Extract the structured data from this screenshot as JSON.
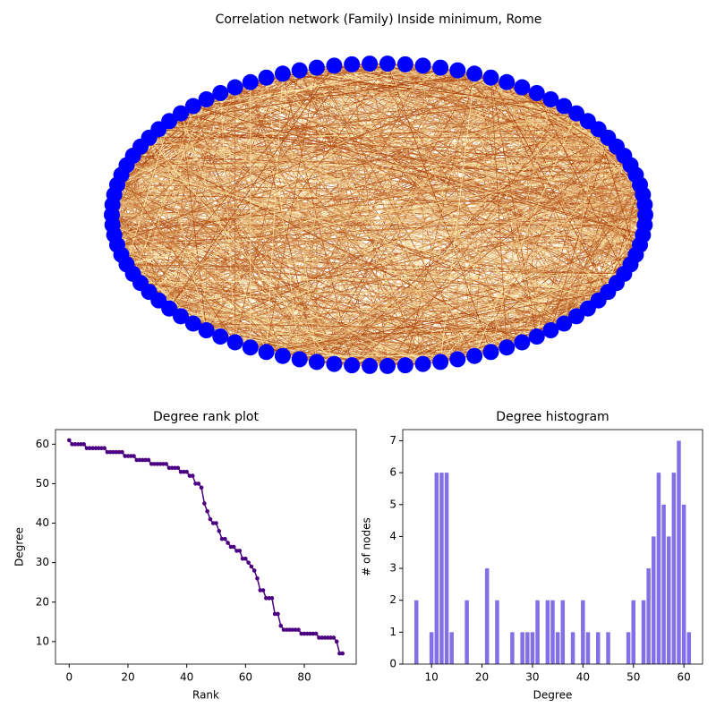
{
  "network": {
    "title": "Correlation network (Family) Inside minimum, Rome"
  },
  "chart_data": [
    {
      "type": "line",
      "title": "Degree rank plot",
      "x_label": "Rank",
      "y_label": "Degree",
      "color": "#4b0082",
      "x": [
        0,
        1,
        2,
        3,
        4,
        5,
        6,
        7,
        8,
        9,
        10,
        11,
        12,
        13,
        14,
        15,
        16,
        17,
        18,
        19,
        20,
        21,
        22,
        23,
        24,
        25,
        26,
        27,
        28,
        29,
        30,
        31,
        32,
        33,
        34,
        35,
        36,
        37,
        38,
        39,
        40,
        41,
        42,
        43,
        44,
        45,
        46,
        47,
        48,
        49,
        50,
        51,
        52,
        53,
        54,
        55,
        56,
        57,
        58,
        59,
        60,
        61,
        62,
        63,
        64,
        65,
        66,
        67,
        68,
        69,
        70,
        71,
        72,
        73,
        74,
        75,
        76,
        77,
        78,
        79,
        80,
        81,
        82,
        83,
        84,
        85,
        86,
        87,
        88,
        89,
        90,
        91,
        92,
        93
      ],
      "values": [
        61,
        60,
        60,
        60,
        60,
        60,
        59,
        59,
        59,
        59,
        59,
        59,
        59,
        58,
        58,
        58,
        58,
        58,
        58,
        57,
        57,
        57,
        57,
        56,
        56,
        56,
        56,
        56,
        55,
        55,
        55,
        55,
        55,
        55,
        54,
        54,
        54,
        54,
        53,
        53,
        53,
        52,
        52,
        50,
        50,
        49,
        45,
        43,
        41,
        40,
        40,
        38,
        36,
        36,
        35,
        34,
        34,
        33,
        33,
        31,
        31,
        30,
        29,
        28,
        26,
        23,
        23,
        21,
        21,
        21,
        17,
        17,
        14,
        13,
        13,
        13,
        13,
        13,
        13,
        12,
        12,
        12,
        12,
        12,
        12,
        11,
        11,
        11,
        11,
        11,
        11,
        10,
        7,
        7
      ],
      "xlim": [
        -4.65,
        97.65
      ],
      "xticks": [
        0,
        20,
        40,
        60,
        80
      ],
      "ylim": [
        4.3,
        63.7
      ],
      "yticks": [
        10,
        20,
        30,
        40,
        50,
        60
      ]
    },
    {
      "type": "bar",
      "title": "Degree histogram",
      "x_label": "Degree",
      "y_label": "# of nodes",
      "color": "#8470e6",
      "x": [
        7,
        10,
        11,
        12,
        13,
        14,
        17,
        21,
        23,
        26,
        28,
        29,
        30,
        31,
        33,
        34,
        35,
        36,
        38,
        40,
        41,
        43,
        45,
        49,
        50,
        52,
        53,
        54,
        55,
        56,
        57,
        58,
        59,
        60,
        61
      ],
      "values": [
        2,
        1,
        6,
        6,
        6,
        1,
        2,
        3,
        2,
        1,
        1,
        1,
        1,
        2,
        2,
        2,
        1,
        2,
        1,
        2,
        1,
        1,
        1,
        1,
        2,
        2,
        3,
        4,
        6,
        5,
        4,
        6,
        7,
        5,
        1
      ],
      "xlim": [
        4.3,
        63.7
      ],
      "xticks": [
        10,
        20,
        30,
        40,
        50,
        60
      ],
      "ylim": [
        0,
        7.35
      ],
      "yticks": [
        0,
        1,
        2,
        3,
        4,
        5,
        6,
        7
      ]
    }
  ]
}
